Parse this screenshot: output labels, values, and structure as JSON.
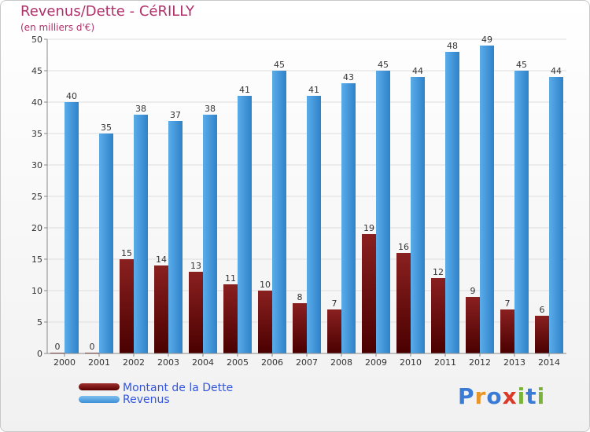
{
  "title": "Revenus/Dette - CéRILLY",
  "subtitle": "(en milliers d'€)",
  "logo": [
    "P",
    "r",
    "o",
    "x",
    "i",
    "t",
    "i"
  ],
  "colors": {
    "debt": "#6b0a0a",
    "revenue": "#3f98dc",
    "title": "#b0306a",
    "legend_text": "#3355dd",
    "logo": [
      "#3a7bd5",
      "#e8962a",
      "#3a7bd5",
      "#d93a2a",
      "#7ab33a",
      "#3a7bd5",
      "#7ab33a"
    ]
  },
  "legend": [
    {
      "label": "Montant de la Dette",
      "key": "debt"
    },
    {
      "label": "Revenus",
      "key": "revenue"
    }
  ],
  "chart_data": {
    "type": "bar",
    "categories": [
      "2000",
      "2001",
      "2002",
      "2003",
      "2004",
      "2005",
      "2006",
      "2007",
      "2008",
      "2009",
      "2010",
      "2011",
      "2012",
      "2013",
      "2014"
    ],
    "series": [
      {
        "name": "Montant de la Dette",
        "values": [
          0,
          0,
          15,
          14,
          13,
          11,
          10,
          8,
          7,
          19,
          16,
          12,
          9,
          7,
          6
        ]
      },
      {
        "name": "Revenus",
        "values": [
          40,
          35,
          38,
          37,
          38,
          41,
          45,
          41,
          43,
          45,
          44,
          48,
          49,
          45,
          44
        ]
      }
    ],
    "ylim": [
      0,
      50
    ],
    "yticks": [
      0,
      5,
      10,
      15,
      20,
      25,
      30,
      35,
      40,
      45,
      50
    ],
    "grid": true
  }
}
